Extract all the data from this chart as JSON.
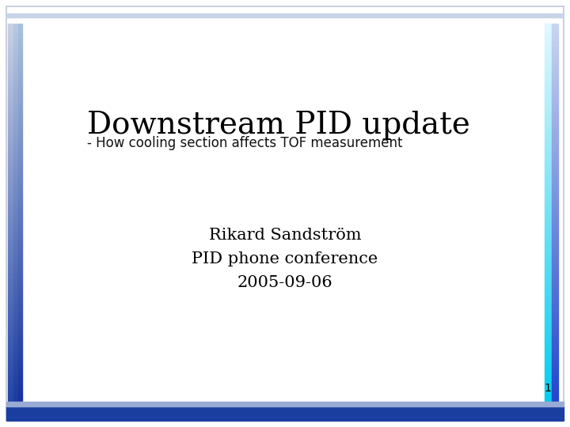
{
  "title": "Downstream PID update",
  "subtitle": "- How cooling section affects TOF measurement",
  "author": "Rikard Sandström",
  "line2": "PID phone conference",
  "line3": "2005-09-06",
  "slide_number": "1",
  "bg_color": "#ffffff",
  "title_fontsize": 28,
  "subtitle_fontsize": 12,
  "body_fontsize": 15,
  "bottom_bar_color": "#1a3fa0",
  "slide_num_fontsize": 10
}
